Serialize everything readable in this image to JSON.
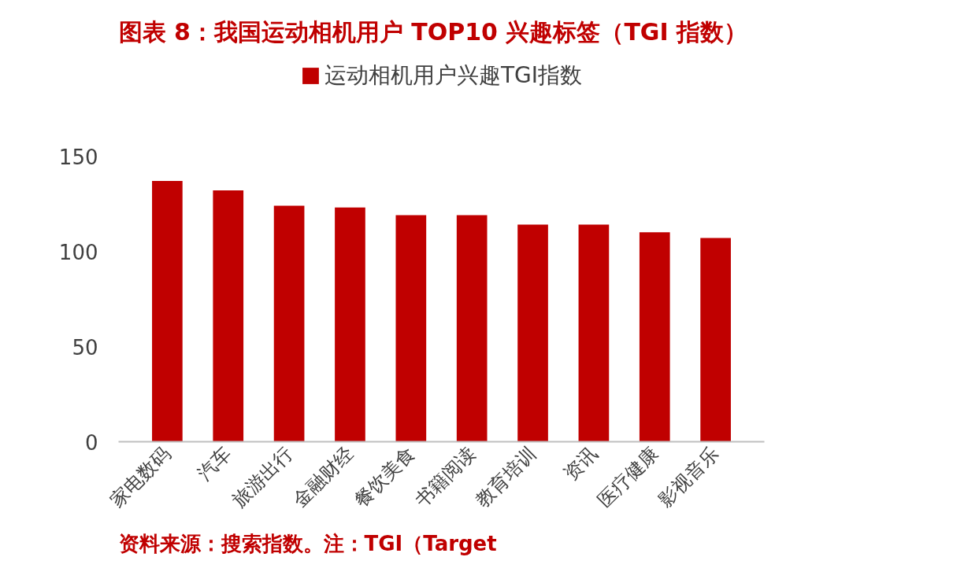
{
  "chart_data": {
    "type": "bar",
    "title": "图表 8：我国运动相机用户 TOP10 兴趣标签（TGI 指数）",
    "categories": [
      "家电数码",
      "汽车",
      "旅游出行",
      "金融财经",
      "餐饮美食",
      "书籍阅读",
      "教育培训",
      "资讯",
      "医疗健康",
      "影视音乐"
    ],
    "series": [
      {
        "name": "运动相机用户兴趣TGI指数",
        "color": "#c00000",
        "values": [
          137,
          132,
          124,
          123,
          119,
          119,
          114,
          114,
          110,
          107
        ]
      }
    ],
    "ylim": [
      0,
      200
    ],
    "yticks": [
      0,
      50,
      100,
      150
    ],
    "grid": false,
    "legend": "top",
    "annotations": [
      "资料来源：搜索指数。注：TGI（Target"
    ]
  }
}
